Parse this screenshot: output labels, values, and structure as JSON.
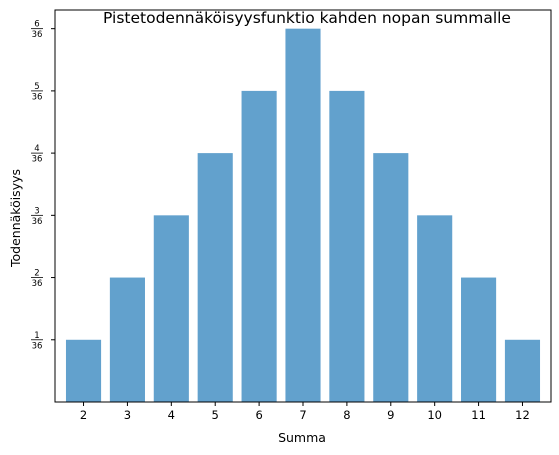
{
  "chart_data": {
    "type": "bar",
    "title": "Pistetodennäköisyysfunktio kahden nopan summalle",
    "xlabel": "Summa",
    "ylabel": "Todennäköisyys",
    "categories": [
      "2",
      "3",
      "4",
      "5",
      "6",
      "7",
      "8",
      "9",
      "10",
      "11",
      "12"
    ],
    "values": [
      0.027778,
      0.055556,
      0.083333,
      0.111111,
      0.138889,
      0.166667,
      0.138889,
      0.111111,
      0.083333,
      0.055556,
      0.027778
    ],
    "yticks": [
      {
        "value": 0.027778,
        "numerator": "1",
        "denominator": "36"
      },
      {
        "value": 0.055556,
        "numerator": "2",
        "denominator": "36"
      },
      {
        "value": 0.083333,
        "numerator": "3",
        "denominator": "36"
      },
      {
        "value": 0.111111,
        "numerator": "4",
        "denominator": "36"
      },
      {
        "value": 0.138889,
        "numerator": "5",
        "denominator": "36"
      },
      {
        "value": 0.166667,
        "numerator": "6",
        "denominator": "36"
      }
    ],
    "ylim": [
      0,
      0.175
    ],
    "bar_color": "#62a1cd",
    "grid": false,
    "legend": "none"
  }
}
